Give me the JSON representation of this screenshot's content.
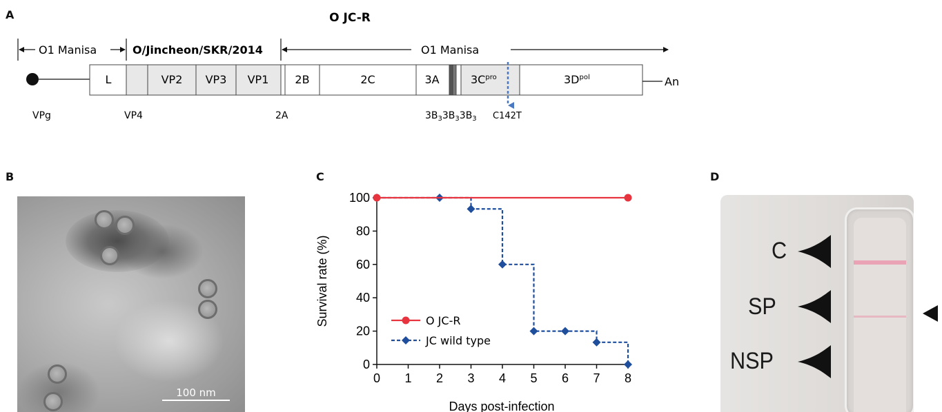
{
  "panels": {
    "a": "A",
    "b": "B",
    "c": "C",
    "d": "D"
  },
  "genome": {
    "title": "O JC-R",
    "region_left": "O1 Manisa",
    "region_middle": "O/Jincheon/SKR/2014",
    "region_right": "O1 Manisa",
    "segments": {
      "l": "L",
      "vp2": "VP2",
      "vp3": "VP3",
      "vp1": "VP1",
      "s2b": "2B",
      "s2c": "2C",
      "s3a": "3A",
      "s3c": "3C",
      "s3c_sup": "pro",
      "s3d": "3D",
      "s3d_sup": "pol"
    },
    "poly_a": "An",
    "labels": {
      "vpg": "VPg",
      "vp4": "VP4",
      "s2a": "2A",
      "s3b_main": "3B",
      "s3b_sub": "3",
      "mutation": "C142T"
    },
    "colors": {
      "shaded": "#e8e8e8",
      "vpg_box": "#555555",
      "mutation_arrow": "#4a78c2"
    }
  },
  "micrograph": {
    "scale_label": "100 nm"
  },
  "chart_data": {
    "type": "line",
    "xlabel": "Days post-infection",
    "ylabel": "Survival rate (%)",
    "x_ticks": [
      0,
      1,
      2,
      3,
      4,
      5,
      6,
      7,
      8
    ],
    "y_ticks": [
      0,
      20,
      40,
      60,
      80,
      100
    ],
    "xlim": [
      0,
      8
    ],
    "ylim": [
      0,
      100
    ],
    "step": true,
    "legend_position": "lower-left",
    "series": [
      {
        "name": "O JC-R",
        "color": "#e8343f",
        "marker": "circle",
        "line": "solid",
        "x": [
          0,
          8
        ],
        "y": [
          100,
          100
        ]
      },
      {
        "name": "JC wild type",
        "color": "#1f4e9c",
        "marker": "diamond",
        "line": "dashed",
        "x": [
          0,
          2,
          3,
          4,
          5,
          6,
          7,
          8
        ],
        "y": [
          100,
          100,
          93.3,
          60,
          20,
          20,
          13.3,
          0
        ]
      }
    ]
  },
  "strip": {
    "labels": {
      "c": "C",
      "sp": "SP",
      "nsp": "NSP"
    },
    "colors": {
      "control_band": "#e9a3b5",
      "sp_band": "#e6b8c2"
    }
  }
}
